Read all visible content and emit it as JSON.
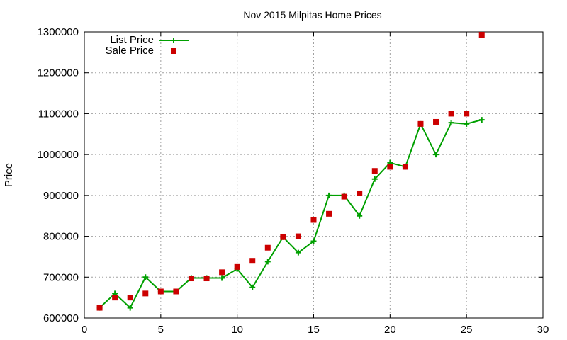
{
  "chart_data": {
    "type": "line",
    "title": "Nov 2015 Milpitas Home Prices",
    "xlabel": "",
    "ylabel": "Price",
    "xlim": [
      0,
      30
    ],
    "ylim": [
      600000,
      1300000
    ],
    "xticks": [
      0,
      5,
      10,
      15,
      20,
      25,
      30
    ],
    "yticks": [
      600000,
      700000,
      800000,
      900000,
      1000000,
      1100000,
      1200000,
      1300000
    ],
    "xtick_labels": [
      "0",
      "5",
      "10",
      "15",
      "20",
      "25",
      "30"
    ],
    "ytick_labels": [
      "600000",
      "700000",
      "800000",
      "900000",
      "1000000",
      "1100000",
      "1200000",
      "1300000"
    ],
    "grid": true,
    "legend_position": "top-left",
    "series": [
      {
        "name": "List Price",
        "style": "linespoints",
        "color": "#00a000",
        "x": [
          1,
          2,
          3,
          4,
          5,
          6,
          7,
          8,
          9,
          10,
          11,
          12,
          13,
          14,
          15,
          16,
          17,
          18,
          19,
          20,
          21,
          22,
          23,
          24,
          25,
          26
        ],
        "y": [
          625000,
          660000,
          625000,
          700000,
          665000,
          665000,
          698000,
          698000,
          698000,
          720000,
          675000,
          738000,
          798000,
          760000,
          788000,
          900000,
          900000,
          850000,
          940000,
          980000,
          970000,
          1075000,
          1000000,
          1078000,
          1075000,
          1085000
        ]
      },
      {
        "name": "Sale Price",
        "style": "points",
        "color": "#cc0000",
        "x": [
          1,
          2,
          3,
          4,
          5,
          6,
          7,
          8,
          9,
          10,
          11,
          12,
          13,
          14,
          15,
          16,
          17,
          18,
          19,
          20,
          21,
          22,
          23,
          24,
          25,
          26
        ],
        "y": [
          625000,
          650000,
          650000,
          660000,
          665000,
          665000,
          697000,
          697000,
          712000,
          725000,
          740000,
          772000,
          798000,
          800000,
          840000,
          855000,
          897000,
          905000,
          960000,
          970000,
          970000,
          1075000,
          1080000,
          1100000,
          1100000,
          1293000
        ]
      }
    ]
  }
}
